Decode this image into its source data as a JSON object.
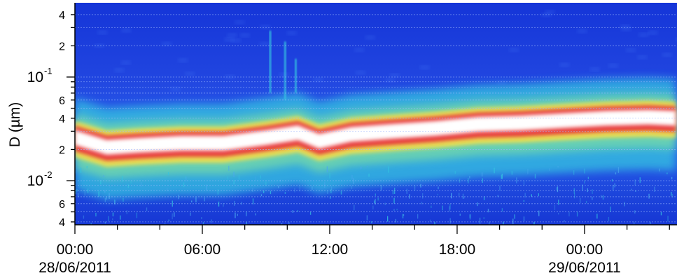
{
  "chart_data": {
    "type": "heatmap",
    "title": "",
    "ylabel": "D (µm)",
    "xlabel": "",
    "yscale": "log",
    "ylim": [
      0.0035,
      0.5
    ],
    "xlim_hours": [
      0,
      47.3
    ],
    "y_ticks": [
      {
        "value": 0.004,
        "label": "4",
        "exp": ""
      },
      {
        "value": 0.006,
        "label": "6",
        "exp": ""
      },
      {
        "value": 0.01,
        "label": "10",
        "exp": "-2"
      },
      {
        "value": 0.02,
        "label": "2",
        "exp": ""
      },
      {
        "value": 0.04,
        "label": "4",
        "exp": ""
      },
      {
        "value": 0.06,
        "label": "6",
        "exp": ""
      },
      {
        "value": 0.1,
        "label": "10",
        "exp": "-1"
      },
      {
        "value": 0.2,
        "label": "2",
        "exp": ""
      },
      {
        "value": 0.4,
        "label": "4",
        "exp": ""
      }
    ],
    "x_ticks": [
      {
        "hour": 0,
        "time": "00:00",
        "date": "28/06/2011"
      },
      {
        "hour": 6,
        "time": "06:00",
        "date": ""
      },
      {
        "hour": 12,
        "time": "12:00",
        "date": ""
      },
      {
        "hour": 18,
        "time": "18:00",
        "date": ""
      },
      {
        "hour": 24,
        "time": "00:00",
        "date": "29/06/2011"
      }
    ],
    "mode_diameter_track": [
      {
        "hour": 0,
        "d_um": 0.026
      },
      {
        "hour": 1.5,
        "d_um": 0.021
      },
      {
        "hour": 3,
        "d_um": 0.022
      },
      {
        "hour": 5,
        "d_um": 0.023
      },
      {
        "hour": 7,
        "d_um": 0.023
      },
      {
        "hour": 9,
        "d_um": 0.026
      },
      {
        "hour": 10.5,
        "d_um": 0.029
      },
      {
        "hour": 11.5,
        "d_um": 0.024
      },
      {
        "hour": 13,
        "d_um": 0.028
      },
      {
        "hour": 15,
        "d_um": 0.03
      },
      {
        "hour": 17,
        "d_um": 0.032
      },
      {
        "hour": 19,
        "d_um": 0.035
      },
      {
        "hour": 21,
        "d_um": 0.036
      },
      {
        "hour": 23,
        "d_um": 0.038
      },
      {
        "hour": 25,
        "d_um": 0.04
      },
      {
        "hour": 27,
        "d_um": 0.041
      },
      {
        "hour": 28.3,
        "d_um": 0.04
      }
    ],
    "colors": {
      "background": "#1a3fd9",
      "low": "#2a6cf0",
      "mid": "#34c4e0",
      "high": "#f5e04a",
      "peak": "#e8303a",
      "max": "#ffffff"
    }
  }
}
